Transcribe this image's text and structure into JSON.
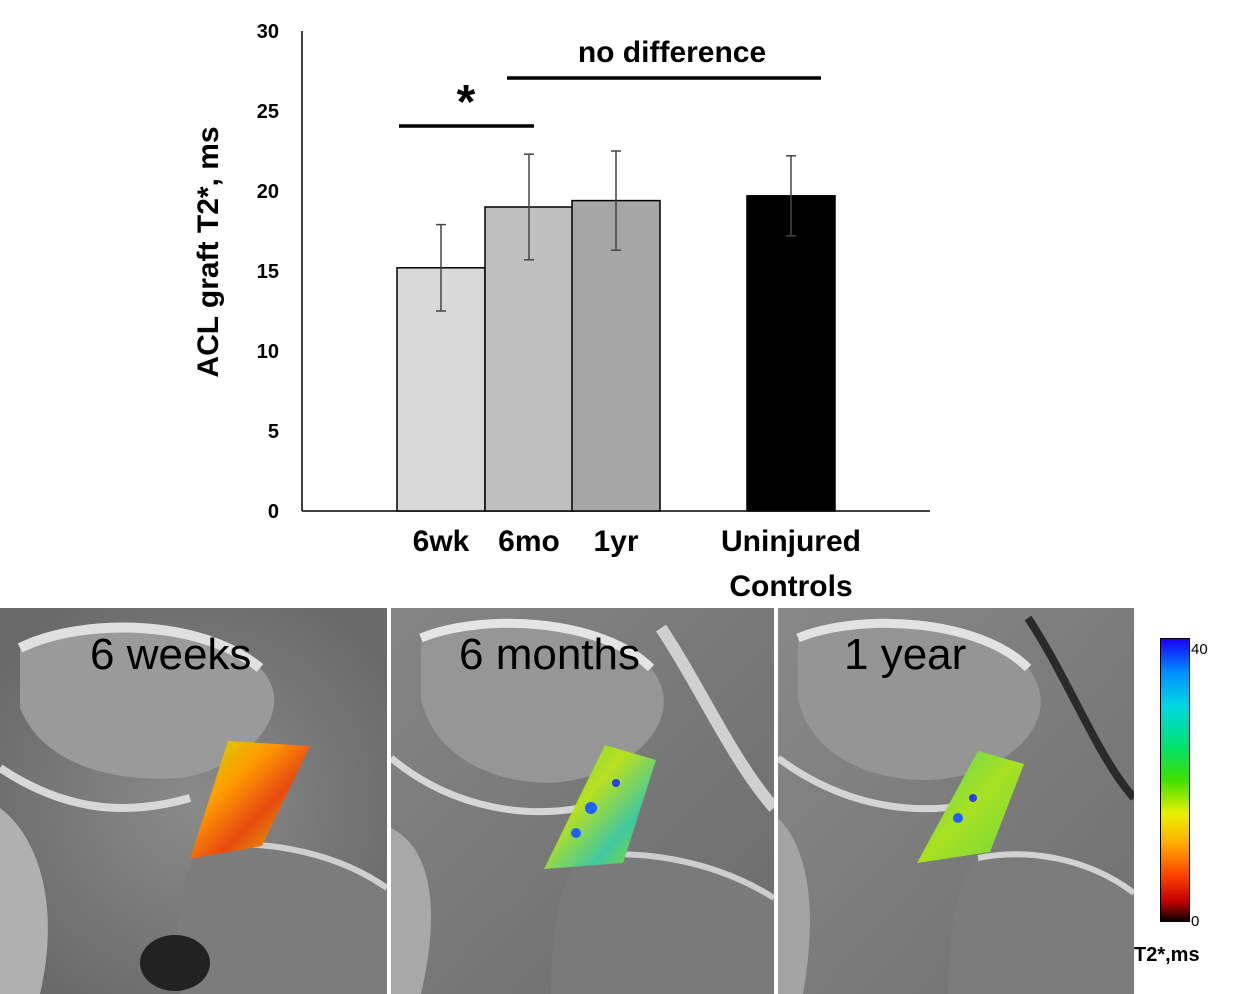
{
  "chart_data": {
    "type": "bar",
    "ylabel": "ACL graft T2*, ms",
    "ylim": [
      0,
      30
    ],
    "yticks": [
      0,
      5,
      10,
      15,
      20,
      25,
      30
    ],
    "categories": [
      "6wk",
      "6mo",
      "1yr",
      "Uninjured Controls"
    ],
    "category_lines": [
      [
        "6wk"
      ],
      [
        "6mo"
      ],
      [
        "1yr"
      ],
      [
        "Uninjured",
        "Controls"
      ]
    ],
    "values": [
      15.2,
      19.0,
      19.4,
      19.7
    ],
    "errors": [
      2.7,
      3.3,
      3.1,
      2.5
    ],
    "colors": [
      "#d9d9d9",
      "#bfbfbf",
      "#a6a6a6",
      "#000000"
    ],
    "annotations": [
      {
        "label": "*",
        "from": "6wk",
        "to": "6mo"
      },
      {
        "label": "no difference",
        "from": "6mo",
        "to": "Uninjured Controls"
      }
    ]
  },
  "panels": [
    {
      "label": "6 weeks"
    },
    {
      "label": "6 months"
    },
    {
      "label": "1 year"
    }
  ],
  "colorbar": {
    "max_label": "40",
    "min_label": "0",
    "unit_label": "T2*,ms"
  }
}
